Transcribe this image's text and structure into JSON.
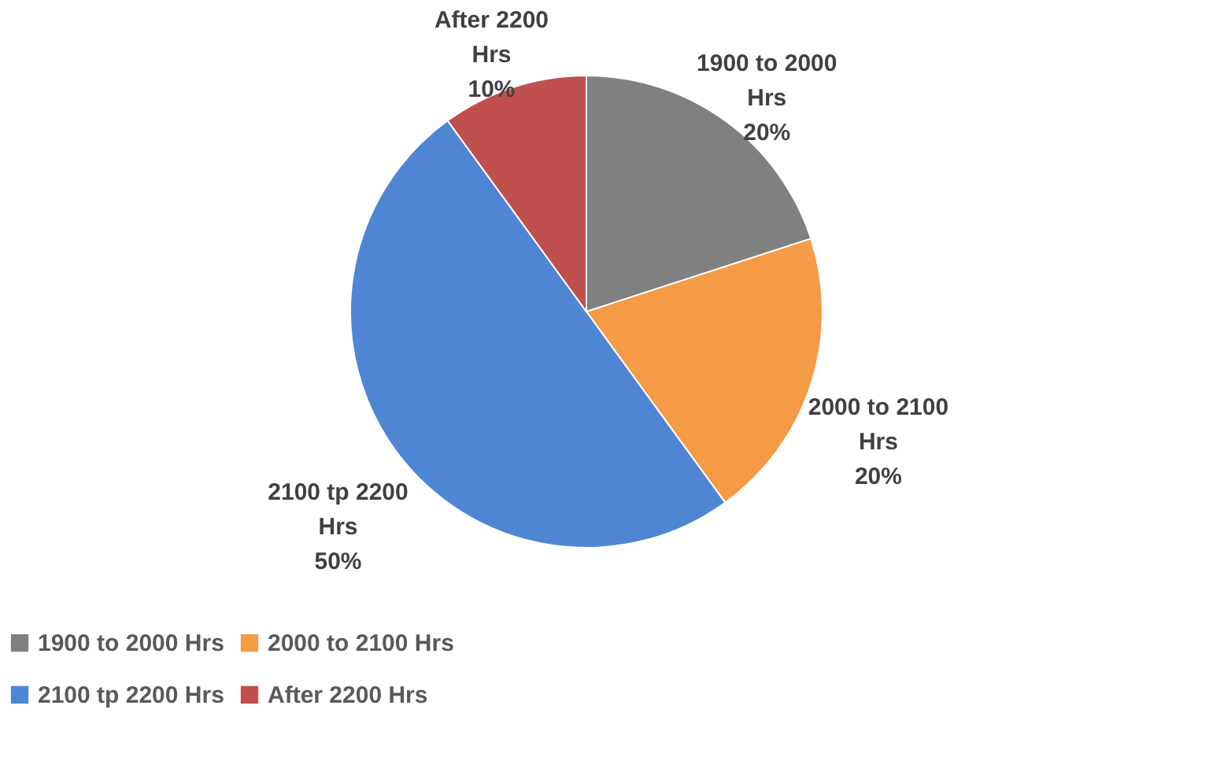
{
  "chart_data": {
    "type": "pie",
    "categories": [
      "1900 to 2000 Hrs",
      "2000 to 2100 Hrs",
      "2100 tp 2200 Hrs",
      "After 2200 Hrs"
    ],
    "values": [
      20,
      20,
      50,
      10
    ],
    "colors": [
      "#808080",
      "#f59a45",
      "#4f86d4",
      "#c0504d"
    ],
    "value_labels": [
      "20%",
      "20%",
      "50%",
      "10%"
    ],
    "legend": "bottom"
  }
}
